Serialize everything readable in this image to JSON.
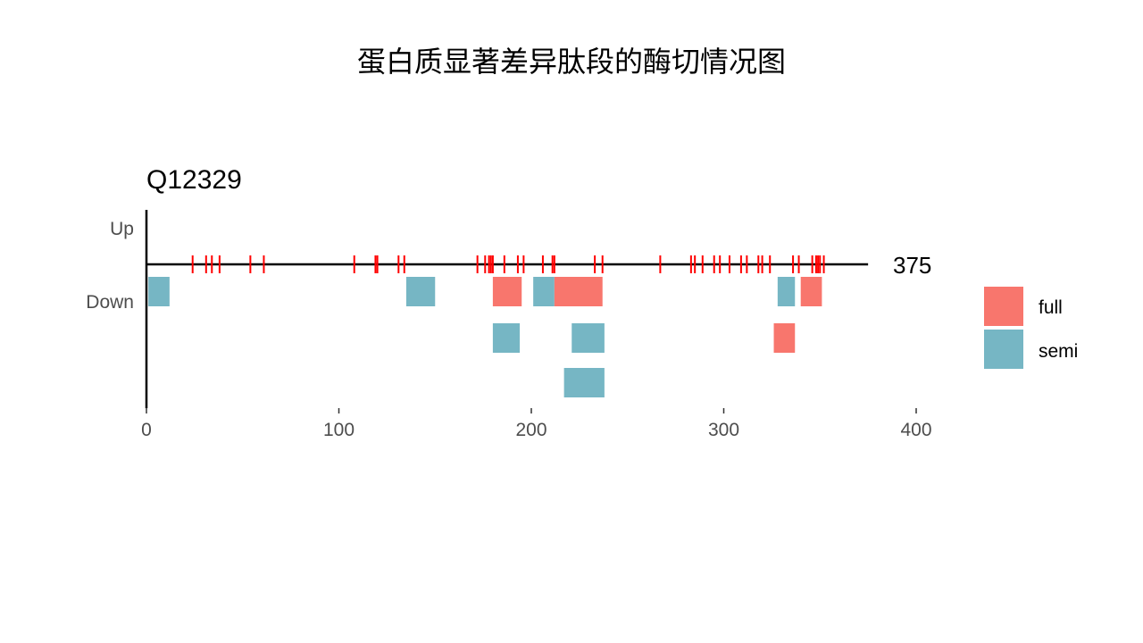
{
  "title": "蛋白质显著差异肽段的酶切情况图",
  "chart_data": {
    "type": "bar",
    "subtitle": "Q12329",
    "protein_length": 375,
    "protein_length_label": "375",
    "xlim": [
      0,
      400
    ],
    "x_ticks": [
      0,
      100,
      200,
      300,
      400
    ],
    "x_tick_labels": [
      "0",
      "100",
      "200",
      "300",
      "400"
    ],
    "y_labels": [
      "Up",
      "Down"
    ],
    "grid": false,
    "legend": {
      "placement": "right",
      "entries": [
        {
          "label": "full",
          "color": "#F8766D"
        },
        {
          "label": "semi",
          "color": "#76B6C4"
        }
      ]
    },
    "cleavage_sites": [
      24,
      31,
      34,
      38,
      54,
      61,
      108,
      119,
      120,
      131,
      134,
      172,
      176,
      178,
      179,
      180,
      186,
      193,
      196,
      206,
      211,
      212,
      233,
      237,
      267,
      283,
      285,
      289,
      295,
      298,
      303,
      309,
      312,
      318,
      320,
      324,
      336,
      339,
      346,
      348,
      349,
      350,
      352
    ],
    "cleavage_color": "#FF0000",
    "peptides": [
      {
        "start": 1,
        "end": 12,
        "type": "semi",
        "direction": "Down",
        "lane": 1
      },
      {
        "start": 135,
        "end": 150,
        "type": "semi",
        "direction": "Down",
        "lane": 1
      },
      {
        "start": 180,
        "end": 195,
        "type": "full",
        "direction": "Down",
        "lane": 1
      },
      {
        "start": 201,
        "end": 212,
        "type": "semi",
        "direction": "Down",
        "lane": 1
      },
      {
        "start": 212,
        "end": 237,
        "type": "full",
        "direction": "Down",
        "lane": 1
      },
      {
        "start": 328,
        "end": 337,
        "type": "semi",
        "direction": "Down",
        "lane": 1
      },
      {
        "start": 340,
        "end": 351,
        "type": "full",
        "direction": "Down",
        "lane": 1
      },
      {
        "start": 180,
        "end": 194,
        "type": "semi",
        "direction": "Down",
        "lane": 2
      },
      {
        "start": 221,
        "end": 238,
        "type": "semi",
        "direction": "Down",
        "lane": 2
      },
      {
        "start": 326,
        "end": 337,
        "type": "full",
        "direction": "Down",
        "lane": 2
      },
      {
        "start": 217,
        "end": 238,
        "type": "semi",
        "direction": "Down",
        "lane": 3
      }
    ]
  }
}
